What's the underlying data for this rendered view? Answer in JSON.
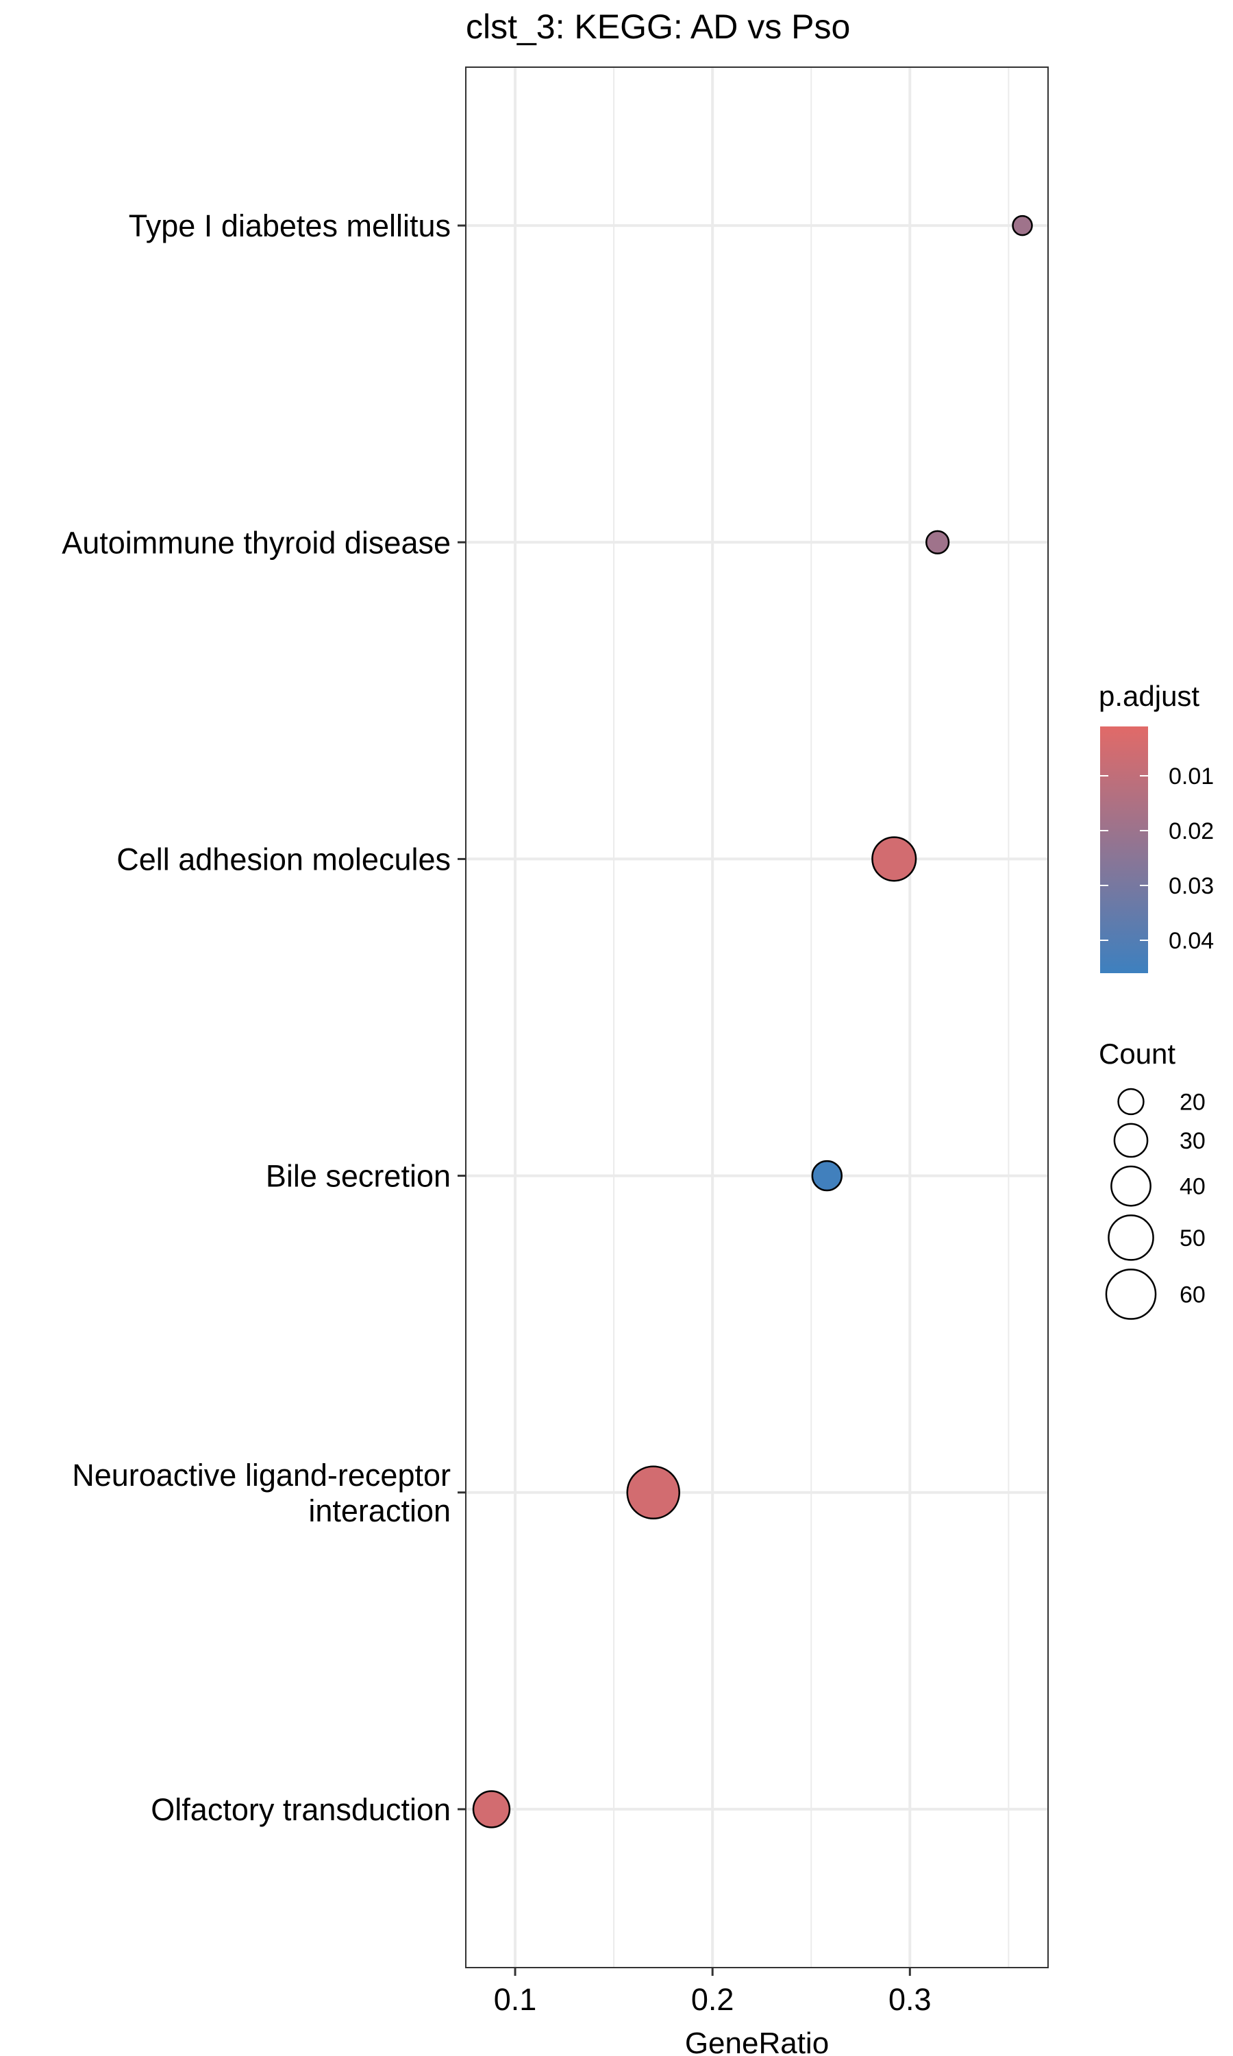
{
  "chart_data": {
    "type": "scatter",
    "title": "clst_3: KEGG: AD vs Pso",
    "xlabel": "GeneRatio",
    "ylabel": "",
    "xlim": [
      0.075,
      0.37
    ],
    "xticks": [
      {
        "value": 0.1,
        "label": "0.1"
      },
      {
        "value": 0.2,
        "label": "0.2"
      },
      {
        "value": 0.3,
        "label": "0.3"
      }
    ],
    "categories": [
      "Olfactory transduction",
      "Neuroactive ligand-receptor interaction",
      "Bile secretion",
      "Cell adhesion molecules",
      "Autoimmune thyroid disease",
      "Type I diabetes mellitus"
    ],
    "category_lines": [
      [
        "Olfactory transduction"
      ],
      [
        "Neuroactive ligand-receptor",
        "interaction"
      ],
      [
        "Bile secretion"
      ],
      [
        "Cell adhesion molecules"
      ],
      [
        "Autoimmune thyroid disease"
      ],
      [
        "Type I diabetes mellitus"
      ]
    ],
    "points": [
      {
        "term": "Olfactory transduction",
        "gene_ratio": 0.088,
        "count": 35,
        "p_adjust": 0.005
      },
      {
        "term": "Neuroactive ligand-receptor interaction",
        "gene_ratio": 0.17,
        "count": 66,
        "p_adjust": 0.005
      },
      {
        "term": "Bile secretion",
        "gene_ratio": 0.258,
        "count": 25,
        "p_adjust": 0.045
      },
      {
        "term": "Cell adhesion molecules",
        "gene_ratio": 0.292,
        "count": 48,
        "p_adjust": 0.005
      },
      {
        "term": "Autoimmune thyroid disease",
        "gene_ratio": 0.314,
        "count": 17,
        "p_adjust": 0.019
      },
      {
        "term": "Type I diabetes mellitus",
        "gene_ratio": 0.357,
        "count": 14,
        "p_adjust": 0.019
      }
    ],
    "grid": true,
    "legend_position": "right",
    "color_legend": {
      "title": "p.adjust",
      "range": [
        0.001,
        0.046
      ],
      "low_color": "#E16A68",
      "high_color": "#3D80BF",
      "ticks": [
        {
          "value": 0.01,
          "label": "0.01"
        },
        {
          "value": 0.02,
          "label": "0.02"
        },
        {
          "value": 0.03,
          "label": "0.03"
        },
        {
          "value": 0.04,
          "label": "0.04"
        }
      ]
    },
    "size_legend": {
      "title": "Count",
      "entries": [
        {
          "value": 20,
          "label": "20"
        },
        {
          "value": 30,
          "label": "30"
        },
        {
          "value": 40,
          "label": "40"
        },
        {
          "value": 50,
          "label": "50"
        },
        {
          "value": 60,
          "label": "60"
        }
      ]
    }
  }
}
